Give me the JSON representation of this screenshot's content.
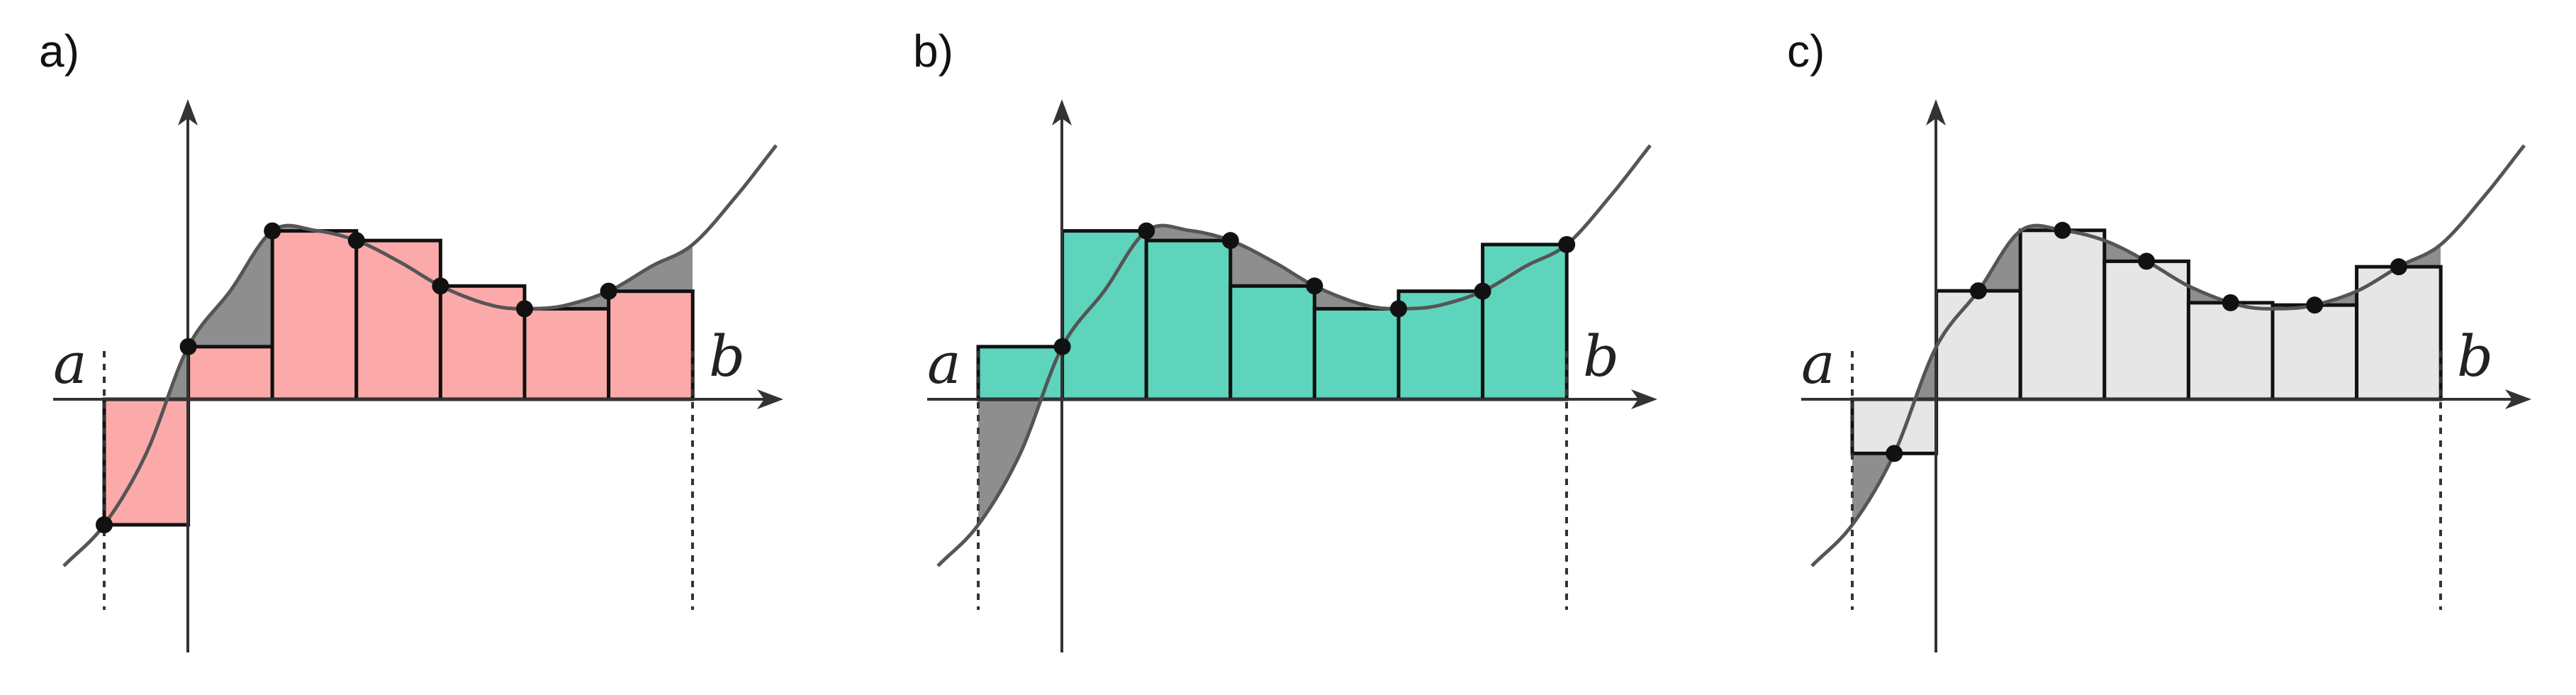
{
  "panels": [
    {
      "id": "a",
      "label": "a)",
      "rule": "left",
      "fill": "#fca9aa"
    },
    {
      "id": "b",
      "label": "b)",
      "rule": "right",
      "fill": "#5fd4bd"
    },
    {
      "id": "c",
      "label": "c)",
      "rule": "midpoint",
      "fill": "#e6e6e6"
    }
  ],
  "axis_letters": {
    "a": "a",
    "b": "b"
  },
  "colors": {
    "curve": "#555555",
    "outline": "#111111",
    "shade": "#8e8e8e",
    "axis": "#333333"
  }
}
